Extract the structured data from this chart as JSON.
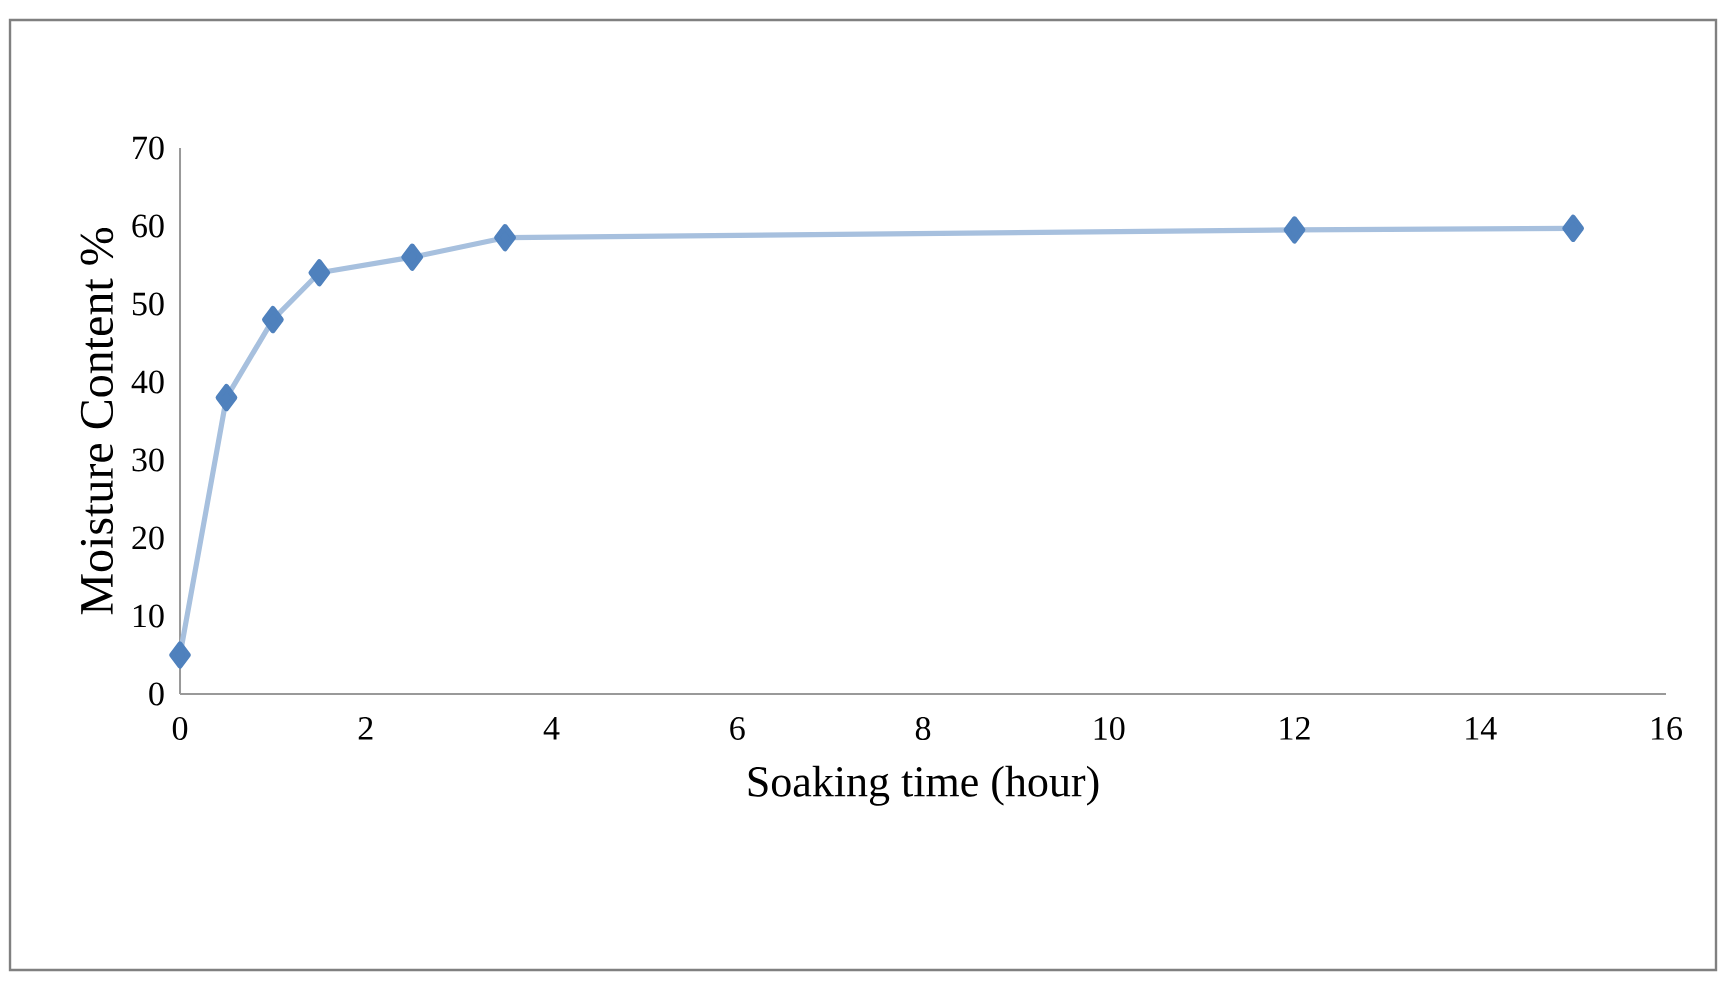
{
  "chart_data": {
    "type": "line",
    "xlabel": "Soaking time (hour)",
    "ylabel": "Moisture Content %",
    "x": [
      0,
      0.5,
      1,
      1.5,
      2.5,
      3.5,
      12,
      15
    ],
    "series": [
      {
        "color": "#4f81bd",
        "values": [
          5,
          38,
          48,
          54,
          56,
          58.5,
          59.5,
          59.7
        ]
      }
    ],
    "xlim": [
      0,
      16
    ],
    "xticks": [
      0,
      2,
      4,
      6,
      8,
      10,
      12,
      14,
      16
    ],
    "ylim": [
      0,
      70
    ],
    "yticks": [
      0,
      10,
      20,
      30,
      40,
      50,
      60,
      70
    ],
    "grid": false,
    "marker": "diamond",
    "line_style": "solid"
  }
}
